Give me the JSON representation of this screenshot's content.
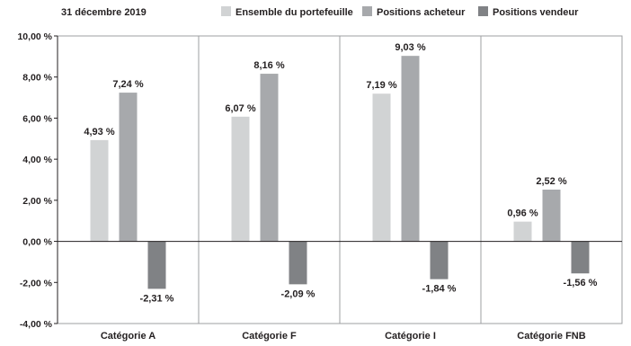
{
  "chart_data": {
    "type": "bar",
    "title": "31 décembre 2019",
    "categories": [
      "Catégorie A",
      "Catégorie F",
      "Catégorie I",
      "Catégorie FNB"
    ],
    "series": [
      {
        "name": "Ensemble du portefeuille",
        "color": "#d1d3d4",
        "values": [
          4.93,
          6.07,
          7.19,
          0.96
        ],
        "labels": [
          "4,93 %",
          "6,07 %",
          "7,19 %",
          "0,96 %"
        ]
      },
      {
        "name": "Positions acheteur",
        "color": "#a7a9ac",
        "values": [
          7.24,
          8.16,
          9.03,
          2.52
        ],
        "labels": [
          "7,24 %",
          "8,16 %",
          "9,03 %",
          "2,52 %"
        ]
      },
      {
        "name": "Positions vendeur",
        "color": "#808285",
        "values": [
          -2.31,
          -2.09,
          -1.84,
          -1.56
        ],
        "labels": [
          "-2,31 %",
          "-2,09 %",
          "-1,84 %",
          "-1,56 %"
        ]
      }
    ],
    "ylim": [
      -4,
      10
    ],
    "yticks": [
      10,
      8,
      6,
      4,
      2,
      0,
      -2,
      -4
    ],
    "ytick_labels": [
      "10,00 %",
      "8,00 %",
      "6,00 %",
      "4,00 %",
      "2,00 %",
      "0,00 %",
      "-2,00 %",
      "-4,00 %"
    ],
    "grid": "vertical separators between categories",
    "legend_position": "top"
  }
}
